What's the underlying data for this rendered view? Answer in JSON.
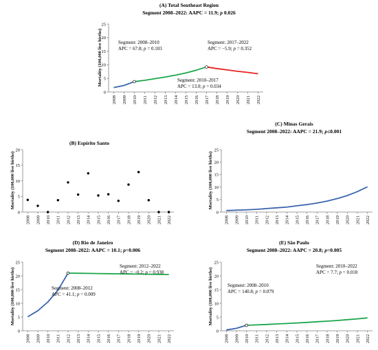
{
  "colors": {
    "blue": "#3a64ae",
    "green": "#1aa64a",
    "red": "#e5211d",
    "axis": "#7f7f7f",
    "point": "#000000"
  },
  "chart_data": [
    {
      "id": "A",
      "type": "line",
      "title": "(A) Total Southeast Region",
      "subtitle": "Segment 2008–2022: AAPC = 11.9; p 0.026",
      "ylabel": "Mortality (100,000 live births)",
      "ylim": [
        0,
        25
      ],
      "yticks": [
        0,
        5,
        10,
        15,
        20,
        25
      ],
      "categories": [
        "2008",
        "2009",
        "2010",
        "2011",
        "2012",
        "2013",
        "2014",
        "2015",
        "2016",
        "2017",
        "2018",
        "2019",
        "2020",
        "2021",
        "2022"
      ],
      "series": [
        {
          "color": "#3a64ae",
          "x": [
            2008,
            2009,
            2010
          ],
          "y": [
            1.6,
            2.4,
            3.8
          ]
        },
        {
          "color": "#1aa64a",
          "x": [
            2010,
            2011,
            2012,
            2013,
            2014,
            2015,
            2016,
            2017
          ],
          "y": [
            3.8,
            4.3,
            4.9,
            5.5,
            6.2,
            7.0,
            8.0,
            9.2
          ]
        },
        {
          "color": "#e5211d",
          "x": [
            2017,
            2018,
            2019,
            2020,
            2021,
            2022
          ],
          "y": [
            9.2,
            8.6,
            8.1,
            7.6,
            7.2,
            6.7
          ]
        }
      ],
      "joinpoints": [
        {
          "x": 2010,
          "y": 3.8
        },
        {
          "x": 2017,
          "y": 9.2
        }
      ],
      "annotations": [
        {
          "lines": [
            "Segment: 2008–2010",
            "APC = 67.8; p = 0.103"
          ]
        },
        {
          "lines": [
            "Segment: 2017–2022",
            "APC = −5.9; p = 0.352"
          ]
        },
        {
          "lines": [
            "Segment: 2010–2017",
            "APC = 13.0; p = 0.034"
          ]
        }
      ]
    },
    {
      "id": "B",
      "type": "scatter",
      "title": "(B) Espírito Santo",
      "subtitle": "",
      "ylabel": "Mortality (100,000 live births)",
      "ylim": [
        0,
        20
      ],
      "yticks": [
        0,
        5,
        10,
        15,
        20
      ],
      "categories": [
        "2008",
        "2009",
        "2010",
        "2011",
        "2012",
        "2013",
        "2014",
        "2015",
        "2016",
        "2017",
        "2018",
        "2019",
        "2020",
        "2021",
        "2022"
      ],
      "points": {
        "x": [
          2008,
          2009,
          2010,
          2011,
          2012,
          2013,
          2014,
          2015,
          2016,
          2017,
          2018,
          2019,
          2020,
          2021,
          2022
        ],
        "y": [
          3.9,
          2.0,
          0.0,
          3.8,
          9.5,
          5.6,
          12.4,
          5.3,
          5.7,
          3.6,
          8.8,
          12.8,
          3.8,
          0.0,
          0.0
        ]
      }
    },
    {
      "id": "C",
      "type": "line",
      "title": "(C) Minas Gerais",
      "subtitle": "Segment 2008–2022: AAPC = 21.9; p≤0.001",
      "ylabel": "Mortality (100,000 live births)",
      "ylim": [
        0,
        25
      ],
      "yticks": [
        0,
        5,
        10,
        15,
        20,
        25
      ],
      "categories": [
        "2008",
        "2009",
        "2010",
        "2011",
        "2012",
        "2013",
        "2014",
        "2015",
        "2016",
        "2017",
        "2018",
        "2019",
        "2020",
        "2021",
        "2022"
      ],
      "series": [
        {
          "color": "#3a64ae",
          "x": [
            2008,
            2009,
            2010,
            2011,
            2012,
            2013,
            2014,
            2015,
            2016,
            2017,
            2018,
            2019,
            2020,
            2021,
            2022
          ],
          "y": [
            0.6,
            0.75,
            0.9,
            1.1,
            1.4,
            1.7,
            2.0,
            2.5,
            3.0,
            3.6,
            4.4,
            5.4,
            6.6,
            8.2,
            10.1
          ]
        }
      ],
      "joinpoints": [],
      "annotations": []
    },
    {
      "id": "D",
      "type": "line",
      "title": "(D) Rio de Janeiro",
      "subtitle": "Segment 2008–2022: AAPC = 10.1; p=0.006",
      "ylabel": "Mortality (100,000 live births)",
      "ylim": [
        0,
        25
      ],
      "yticks": [
        0,
        5,
        10,
        15,
        20,
        25
      ],
      "categories": [
        "2008",
        "2009",
        "2010",
        "2011",
        "2012",
        "2013",
        "2014",
        "2015",
        "2016",
        "2017",
        "2018",
        "2019",
        "2020",
        "2021",
        "2022"
      ],
      "series": [
        {
          "color": "#3a64ae",
          "x": [
            2008,
            2009,
            2010,
            2011,
            2012
          ],
          "y": [
            5.1,
            7.3,
            10.5,
            14.8,
            21.0
          ]
        },
        {
          "color": "#1aa64a",
          "x": [
            2012,
            2013,
            2014,
            2015,
            2016,
            2017,
            2018,
            2019,
            2020,
            2021,
            2022
          ],
          "y": [
            21.0,
            20.95,
            20.9,
            20.85,
            20.8,
            20.75,
            20.7,
            20.65,
            20.6,
            20.55,
            20.5
          ]
        }
      ],
      "joinpoints": [
        {
          "x": 2012,
          "y": 21.0
        }
      ],
      "annotations": [
        {
          "lines": [
            "Segment: 2012–2022",
            "APC = −0.2; p = 0.938"
          ]
        },
        {
          "lines": [
            "Segment: 2008–2012",
            "APC = 41.1; p = 0.009"
          ]
        }
      ]
    },
    {
      "id": "E",
      "type": "line",
      "title": "(E) São Paulo",
      "subtitle": "Segment 2008–2022: AAPC = 20.8; p=0.005",
      "ylabel": "Mortality (100,000 live births)",
      "ylim": [
        0,
        25
      ],
      "yticks": [
        0,
        5,
        10,
        15,
        20,
        25
      ],
      "categories": [
        "2008",
        "2009",
        "2010",
        "2011",
        "2012",
        "2013",
        "2014",
        "2015",
        "2016",
        "2017",
        "2018",
        "2019",
        "2020",
        "2021",
        "2022"
      ],
      "series": [
        {
          "color": "#3a64ae",
          "x": [
            2008,
            2009,
            2010
          ],
          "y": [
            0.3,
            0.9,
            2.0
          ]
        },
        {
          "color": "#1aa64a",
          "x": [
            2010,
            2011,
            2012,
            2013,
            2014,
            2015,
            2016,
            2017,
            2018,
            2019,
            2020,
            2021,
            2022
          ],
          "y": [
            2.0,
            2.15,
            2.3,
            2.5,
            2.65,
            2.85,
            3.05,
            3.3,
            3.5,
            3.75,
            4.05,
            4.35,
            4.7
          ]
        }
      ],
      "joinpoints": [
        {
          "x": 2010,
          "y": 2.0
        }
      ],
      "annotations": [
        {
          "lines": [
            "Segment: 2010–2022",
            "APC = 7.7; p = 0.018"
          ]
        },
        {
          "lines": [
            "Segment: 2008–2010",
            "APC = 140.8; p = 0.079"
          ]
        }
      ]
    }
  ]
}
